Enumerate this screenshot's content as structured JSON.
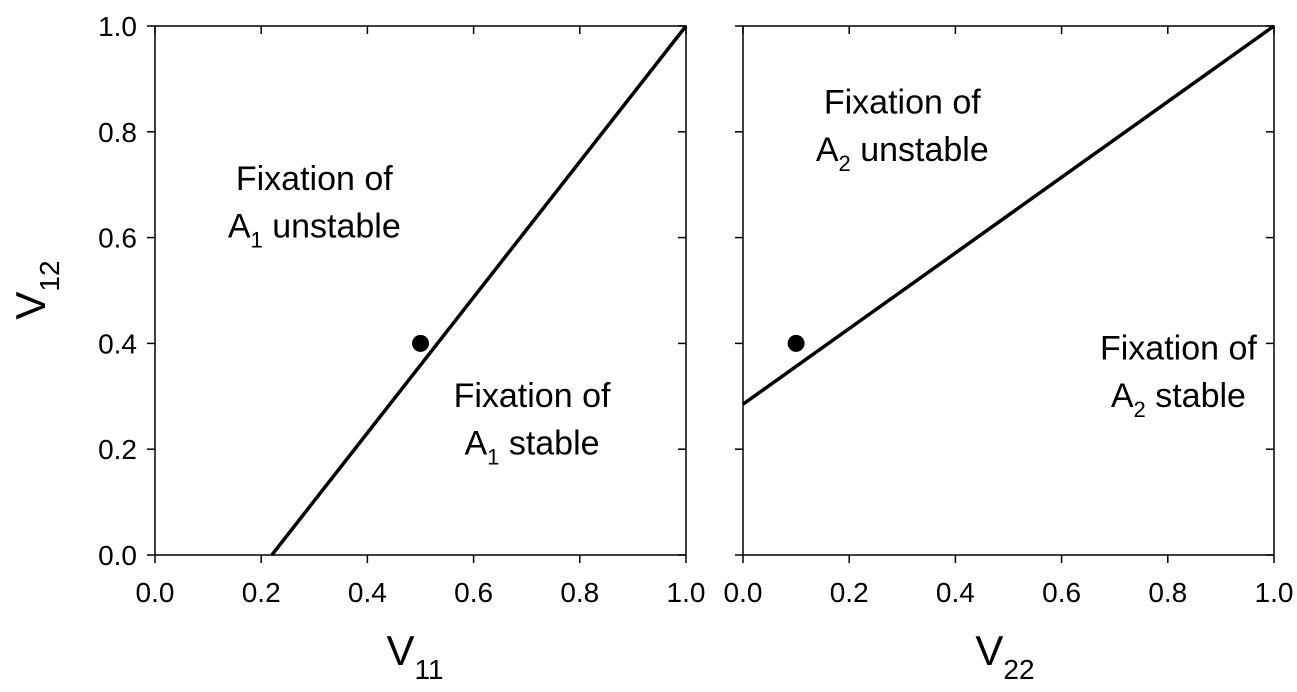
{
  "chart_data": [
    {
      "type": "line",
      "xlabel": {
        "main": "V",
        "sub": "11"
      },
      "ylabel": {
        "main": "V",
        "sub": "12"
      },
      "xlim": [
        0.0,
        1.0
      ],
      "ylim": [
        0.0,
        1.0
      ],
      "x_ticks": [
        "0.0",
        "0.2",
        "0.4",
        "0.6",
        "0.8",
        "1.0"
      ],
      "y_ticks": [
        "0.0",
        "0.2",
        "0.4",
        "0.6",
        "0.8",
        "1.0"
      ],
      "grid": false,
      "boundary_line": {
        "x": [
          0.22,
          1.0
        ],
        "y": [
          0.0,
          1.0
        ]
      },
      "point": {
        "x": 0.5,
        "y": 0.4
      },
      "regions": [
        {
          "line1": "Fixation of",
          "prefix": "A",
          "sub": "1",
          "suffix": " unstable",
          "x": 0.3,
          "y_line1": 0.69,
          "y_line2": 0.6
        },
        {
          "line1": "Fixation of",
          "prefix": "A",
          "sub": "1",
          "suffix": " stable",
          "x": 0.71,
          "y_line1": 0.28,
          "y_line2": 0.19
        }
      ]
    },
    {
      "type": "line",
      "xlabel": {
        "main": "V",
        "sub": "22"
      },
      "ylabel": null,
      "xlim": [
        0.0,
        1.0
      ],
      "ylim": [
        0.0,
        1.0
      ],
      "x_ticks": [
        "0.0",
        "0.2",
        "0.4",
        "0.6",
        "0.8",
        "1.0"
      ],
      "y_ticks": [],
      "grid": false,
      "boundary_line": {
        "x": [
          0.0,
          1.0
        ],
        "y": [
          0.285,
          1.0
        ]
      },
      "point": {
        "x": 0.1,
        "y": 0.4
      },
      "regions": [
        {
          "line1": "Fixation of",
          "prefix": "A",
          "sub": "2",
          "suffix": " unstable",
          "x": 0.3,
          "y_line1": 0.835,
          "y_line2": 0.745
        },
        {
          "line1": "Fixation of",
          "prefix": "A",
          "sub": "2",
          "suffix": " stable",
          "x": 0.82,
          "y_line1": 0.37,
          "y_line2": 0.28
        }
      ]
    }
  ]
}
